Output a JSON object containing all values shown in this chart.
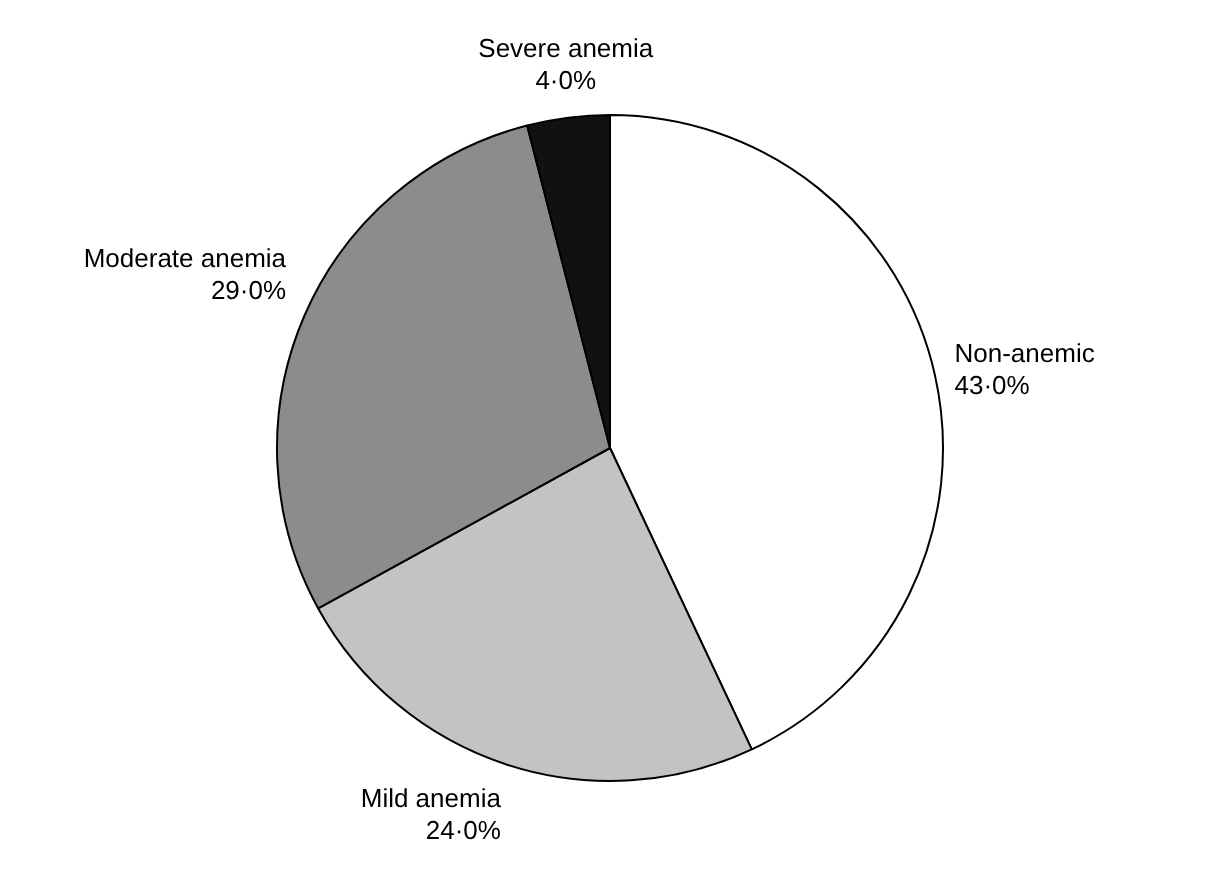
{
  "chart_data": {
    "type": "pie",
    "categories": [
      "Non-anemic",
      "Mild anemia",
      "Moderate anemia",
      "Severe anemia"
    ],
    "values": [
      43,
      24,
      29,
      4
    ],
    "value_labels": [
      "43·0%",
      "24·0%",
      "29·0%",
      "4·0%"
    ],
    "colors": [
      "#ffffff",
      "#c4c2c2",
      "#8c8c8c",
      "#111111"
    ],
    "legend": false
  }
}
